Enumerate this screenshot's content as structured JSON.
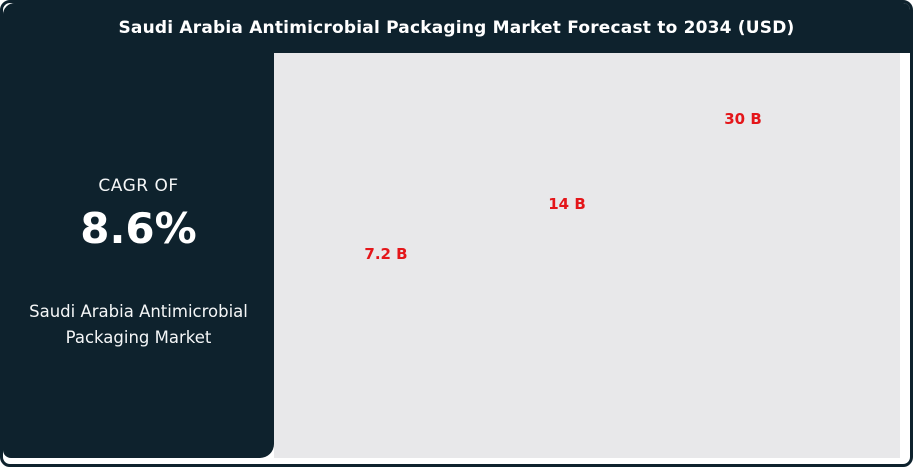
{
  "header": {
    "title": "Saudi Arabia Antimicrobial Packaging Market Forecast to 2034 (USD)"
  },
  "sidebar": {
    "cagr_label": "CAGR OF",
    "cagr_value": "8.6%",
    "market_name": "Saudi Arabia Antimicrobial Packaging Market"
  },
  "chart_data": {
    "type": "bar",
    "title": "Saudi Arabia Antimicrobial Packaging Market Forecast to 2034 (USD)",
    "unit": "USD Billion",
    "values": [
      7.2,
      14,
      30
    ],
    "value_labels": [
      "7.2 B",
      "14 B",
      "30 B"
    ],
    "xlabel": "",
    "ylabel": "",
    "axes_visible": false,
    "grid": false,
    "legend": false,
    "plot_background": "#e8e8ea",
    "label_color": "#e4161a"
  },
  "colors": {
    "panel_dark": "#0e222d",
    "accent_red": "#e4161a",
    "chart_background": "#e8e8ea",
    "text_light": "#ffffff"
  }
}
